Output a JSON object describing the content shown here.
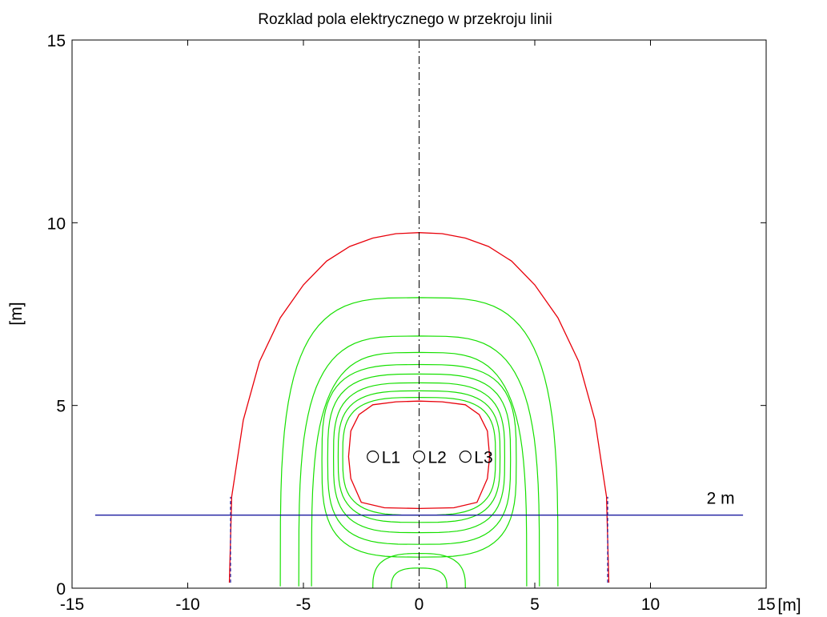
{
  "chart_data": {
    "type": "contour",
    "title": "Rozklad pola elektrycznego w przekroju linii",
    "ylabel": "[m]",
    "xunit": "[m]",
    "xlim": [
      -15,
      15
    ],
    "ylim": [
      0,
      15
    ],
    "xticks": [
      "-15",
      "-10",
      "-5",
      "0",
      "5",
      "10",
      "15"
    ],
    "yticks": [
      "0",
      "5",
      "10",
      "15"
    ],
    "grid": false,
    "colors": {
      "outer_contour": "#e8000a",
      "inner_contours": "#16e000",
      "reference_line": "#1b1ba0",
      "axis": "#000000"
    },
    "reference_line": {
      "y": 2,
      "x_range": [
        -14,
        14
      ],
      "label": "2 m"
    },
    "symmetry_axis_x": 0,
    "conductors": [
      {
        "label": "L1",
        "x": -2,
        "y": 3.6
      },
      {
        "label": "L2",
        "x": 0,
        "y": 3.6
      },
      {
        "label": "L3",
        "x": 2,
        "y": 3.6
      }
    ],
    "red_contours": [
      {
        "name": "outer",
        "points": [
          [
            -8.2,
            0.15
          ],
          [
            -8.1,
            2.5
          ],
          [
            -7.6,
            4.6
          ],
          [
            -6.9,
            6.2
          ],
          [
            -6,
            7.4
          ],
          [
            -5,
            8.3
          ],
          [
            -4,
            8.95
          ],
          [
            -3,
            9.35
          ],
          [
            -2,
            9.58
          ],
          [
            -1,
            9.7
          ],
          [
            0,
            9.73
          ],
          [
            1,
            9.7
          ],
          [
            2,
            9.58
          ],
          [
            3,
            9.35
          ],
          [
            4,
            8.95
          ],
          [
            5,
            8.3
          ],
          [
            6,
            7.4
          ],
          [
            6.9,
            6.2
          ],
          [
            7.6,
            4.6
          ],
          [
            8.1,
            2.5
          ],
          [
            8.2,
            0.15
          ]
        ]
      },
      {
        "name": "inner",
        "points": [
          [
            -2.5,
            2.35
          ],
          [
            -2.95,
            3
          ],
          [
            -3.05,
            3.6
          ],
          [
            -2.95,
            4.3
          ],
          [
            -2.6,
            4.75
          ],
          [
            -2,
            5.02
          ],
          [
            -1,
            5.1
          ],
          [
            0,
            5.12
          ],
          [
            1,
            5.1
          ],
          [
            2,
            5.02
          ],
          [
            2.6,
            4.75
          ],
          [
            2.95,
            4.3
          ],
          [
            3.05,
            3.6
          ],
          [
            2.95,
            3
          ],
          [
            2.5,
            2.35
          ],
          [
            1.5,
            2.2
          ],
          [
            0,
            2.18
          ],
          [
            -1.5,
            2.2
          ]
        ]
      }
    ],
    "green_contours": [
      {
        "type": "closed",
        "rx": 3.3,
        "ytop": 5.22,
        "ybot": 2.0
      },
      {
        "type": "closed",
        "rx": 3.5,
        "ytop": 5.4,
        "ybot": 1.8
      },
      {
        "type": "closed",
        "rx": 3.7,
        "ytop": 5.62,
        "ybot": 1.52
      },
      {
        "type": "closed",
        "rx": 3.95,
        "ytop": 5.86,
        "ybot": 1.2
      },
      {
        "type": "closed",
        "rx": 4.2,
        "ytop": 6.12,
        "ybot": 0.85
      },
      {
        "type": "open",
        "rx": 4.65,
        "ytop": 6.45
      },
      {
        "type": "open",
        "rx": 5.2,
        "ytop": 6.9
      },
      {
        "type": "open",
        "rx": 6.0,
        "ytop": 7.95
      },
      {
        "type": "dome",
        "rx": 2.0,
        "ytop": 0.95
      },
      {
        "type": "dome",
        "rx": 1.2,
        "ytop": 0.55
      }
    ]
  }
}
